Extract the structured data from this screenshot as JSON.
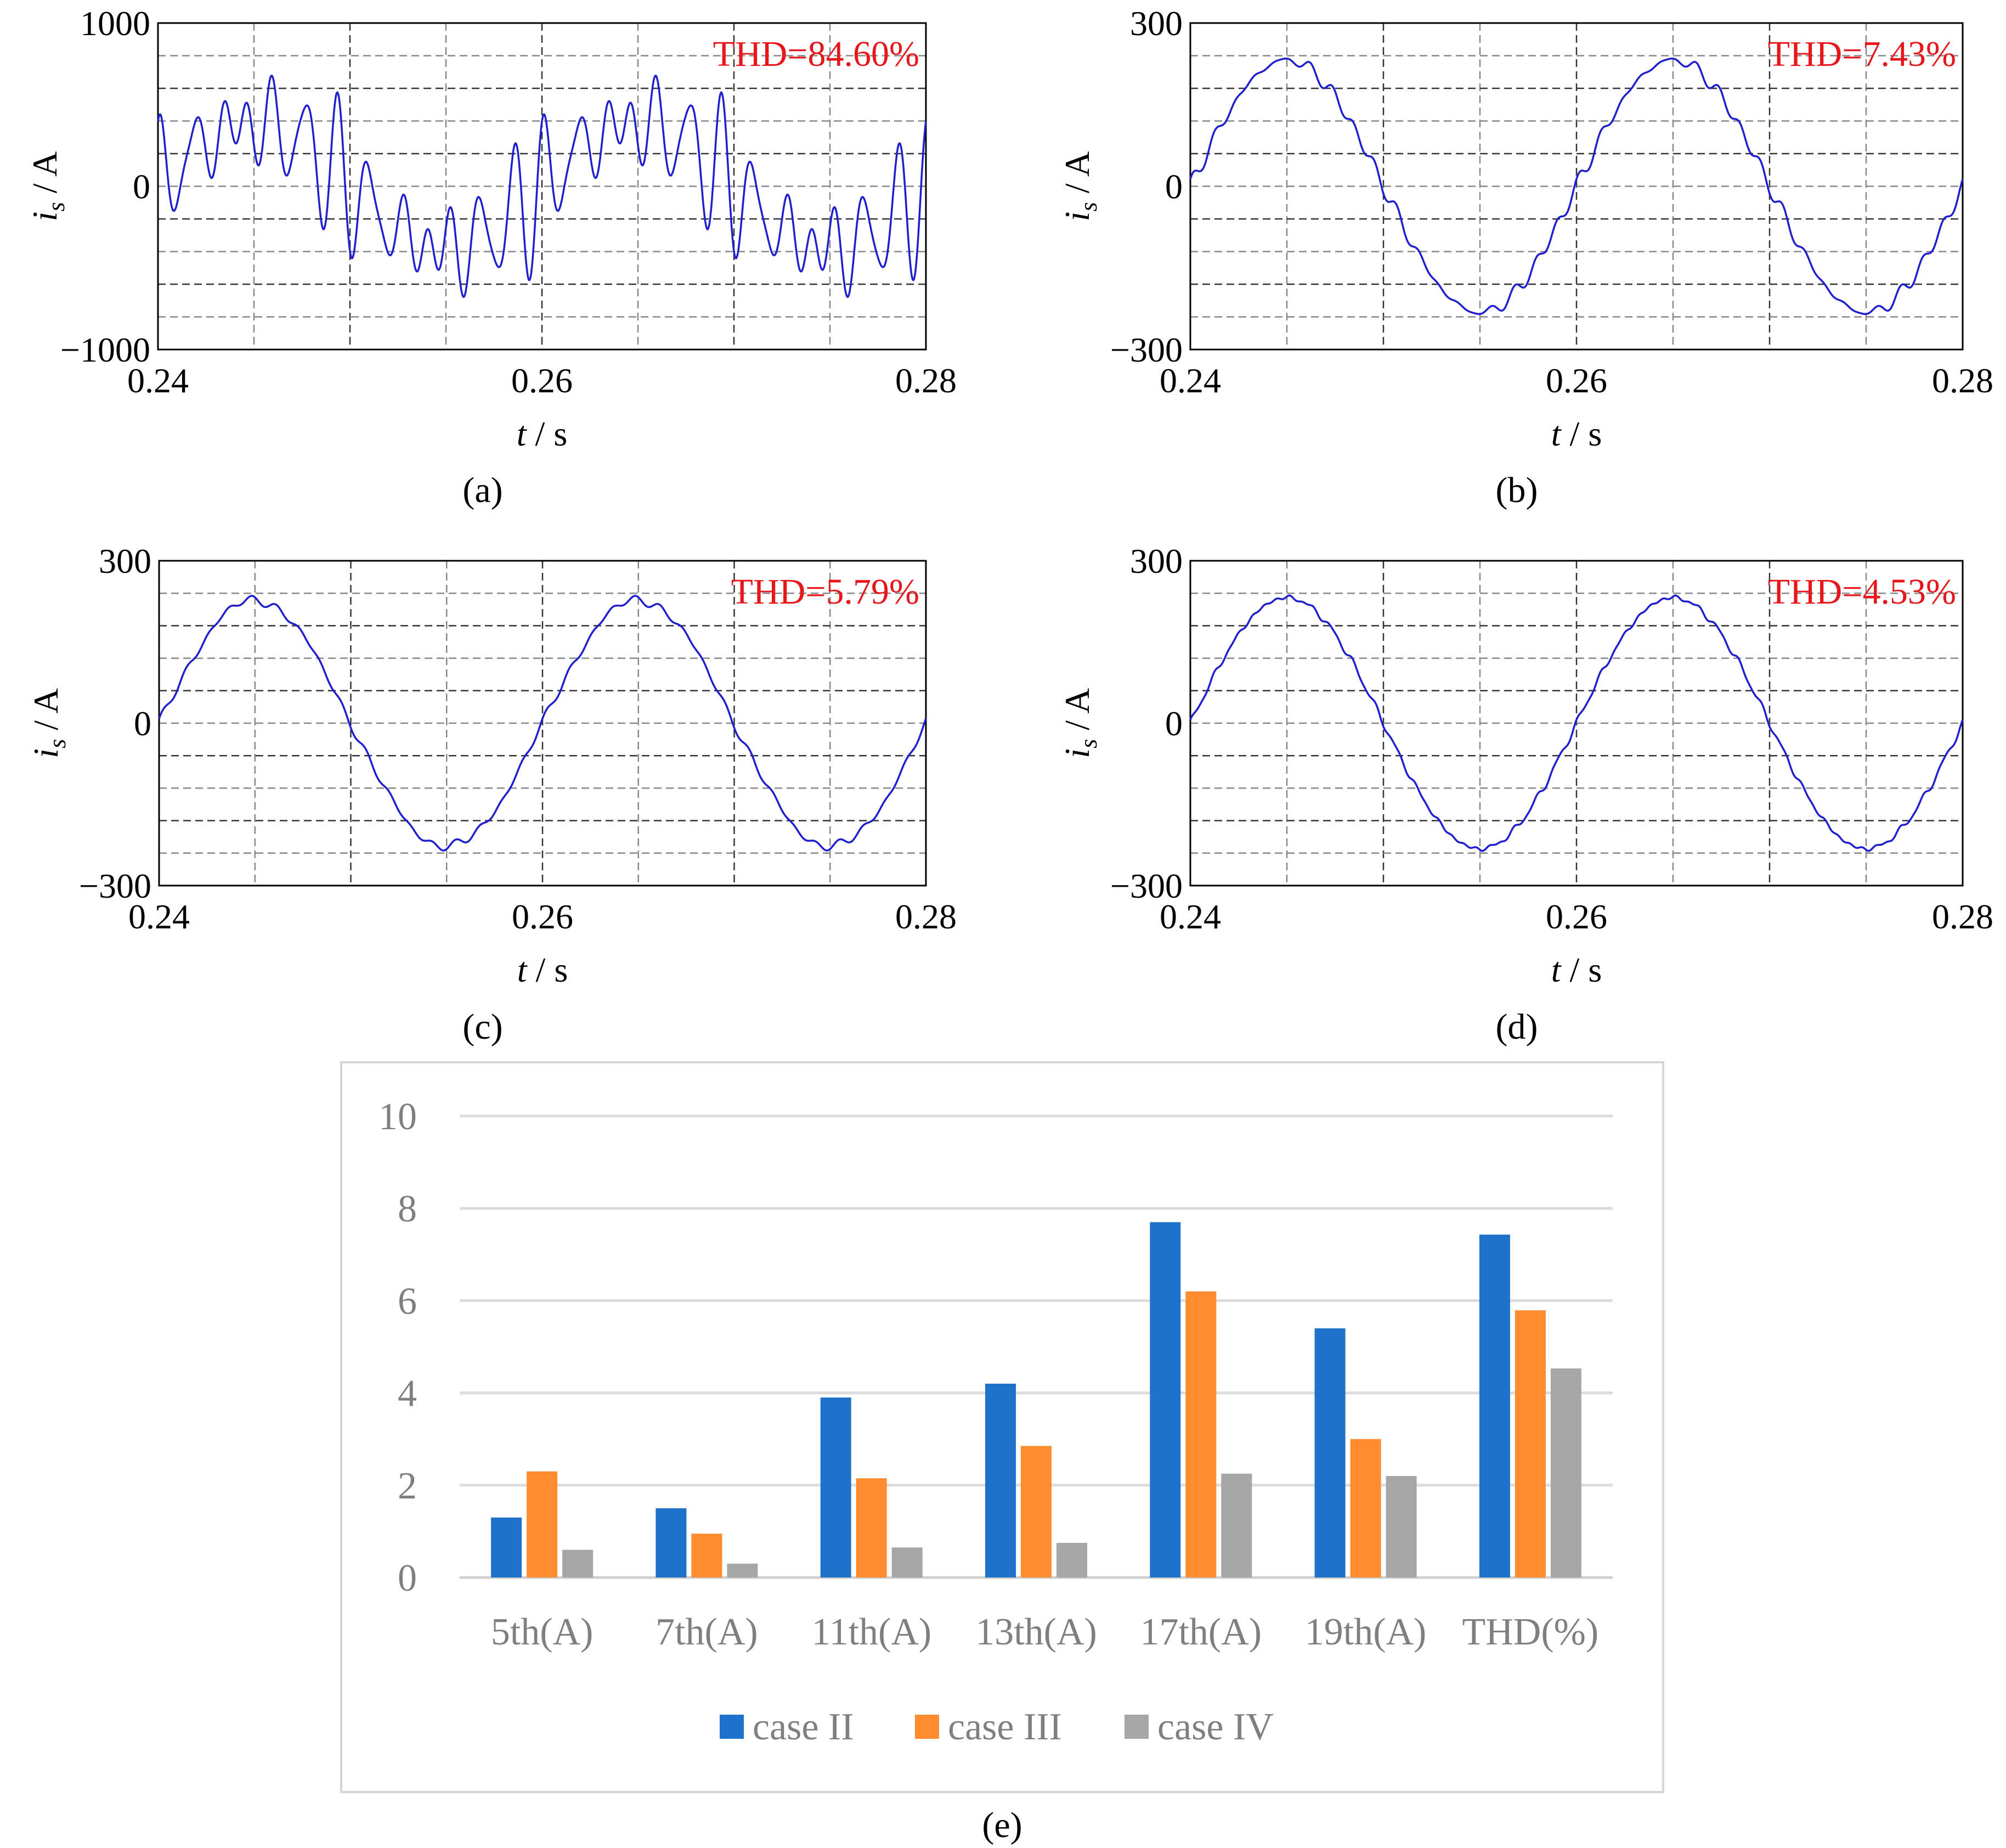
{
  "chart_data": [
    {
      "type": "line",
      "panel": "a",
      "caption": "(a)",
      "ylabel": "i_s / A",
      "ylabel_var": "i",
      "ylabel_sub": "s",
      "ylabel_unit": " / A",
      "xlabel": "t / s",
      "xlabel_var": "t",
      "xlabel_unit": " / s",
      "xlim": [
        0.24,
        0.28
      ],
      "ylim": [
        -1000,
        1000
      ],
      "x_ticks": [
        "0.24",
        "0.26",
        "0.28"
      ],
      "y_ticks": [
        "1000",
        "0",
        "−1000"
      ],
      "annotation": "THD=84.60%",
      "waveform": {
        "amplitude": 380,
        "fundamental_hz": 50,
        "ripple": [
          {
            "harmonic": 11,
            "amp": 200
          },
          {
            "harmonic": 13,
            "amp": 180
          },
          {
            "harmonic": 17,
            "amp": 120
          }
        ]
      },
      "series": [
        {
          "name": "i_s",
          "color": "#1f1fd0"
        }
      ]
    },
    {
      "type": "line",
      "panel": "b",
      "caption": "(b)",
      "ylabel": "i_s / A",
      "ylabel_var": "i",
      "ylabel_sub": "s",
      "ylabel_unit": " / A",
      "xlabel": "t / s",
      "xlabel_var": "t",
      "xlabel_unit": " / s",
      "xlim": [
        0.24,
        0.28
      ],
      "ylim": [
        -300,
        300
      ],
      "x_ticks": [
        "0.24",
        "0.26",
        "0.28"
      ],
      "y_ticks": [
        "300",
        "0",
        "−300"
      ],
      "annotation": "THD=7.43%",
      "waveform": {
        "amplitude": 232,
        "fundamental_hz": 50,
        "ripple": [
          {
            "harmonic": 17,
            "amp": 7
          },
          {
            "harmonic": 19,
            "amp": 6
          },
          {
            "harmonic": 13,
            "amp": 4
          }
        ]
      },
      "series": [
        {
          "name": "i_s",
          "color": "#1f1fd0"
        }
      ]
    },
    {
      "type": "line",
      "panel": "c",
      "caption": "(c)",
      "ylabel": "i_s / A",
      "ylabel_var": "i",
      "ylabel_sub": "s",
      "ylabel_unit": " / A",
      "xlabel": "t / s",
      "xlabel_var": "t",
      "xlabel_unit": " / s",
      "xlim": [
        0.24,
        0.28
      ],
      "ylim": [
        -300,
        300
      ],
      "x_ticks": [
        "0.24",
        "0.26",
        "0.28"
      ],
      "y_ticks": [
        "300",
        "0",
        "−300"
      ],
      "annotation": "THD=5.79%",
      "waveform": {
        "amplitude": 228,
        "fundamental_hz": 50,
        "ripple": [
          {
            "harmonic": 17,
            "amp": 5
          },
          {
            "harmonic": 13,
            "amp": 3
          },
          {
            "harmonic": 5,
            "amp": 3
          }
        ]
      },
      "series": [
        {
          "name": "i_s",
          "color": "#1f1fd0"
        }
      ]
    },
    {
      "type": "line",
      "panel": "d",
      "caption": "(d)",
      "ylabel": "i_s / A",
      "ylabel_var": "i",
      "ylabel_sub": "s",
      "ylabel_unit": " / A",
      "xlabel": "t / s",
      "xlabel_var": "t",
      "xlabel_unit": " / s",
      "xlim": [
        0.24,
        0.28
      ],
      "ylim": [
        -300,
        300
      ],
      "x_ticks": [
        "0.24",
        "0.26",
        "0.28"
      ],
      "y_ticks": [
        "300",
        "0",
        "−300"
      ],
      "annotation": "THD=4.53%",
      "waveform": {
        "amplitude": 232,
        "fundamental_hz": 50,
        "ripple": [
          {
            "harmonic": 17,
            "amp": 3
          },
          {
            "harmonic": 19,
            "amp": 3
          },
          {
            "harmonic": 31,
            "amp": 2
          }
        ]
      },
      "series": [
        {
          "name": "i_s",
          "color": "#1f1fd0"
        }
      ]
    },
    {
      "type": "bar",
      "panel": "e",
      "caption": "(e)",
      "categories": [
        "5th(A)",
        "7th(A)",
        "11th(A)",
        "13th(A)",
        "17th(A)",
        "19th(A)",
        "THD(%)"
      ],
      "series": [
        {
          "name": "case II",
          "color": "#1f72c9",
          "values": [
            1.3,
            1.5,
            3.9,
            4.2,
            7.7,
            5.4,
            7.43
          ]
        },
        {
          "name": "case III",
          "color": "#ff8c2e",
          "values": [
            2.3,
            0.95,
            2.15,
            2.85,
            6.2,
            3.0,
            5.79
          ]
        },
        {
          "name": "case IV",
          "color": "#a6a6a6",
          "values": [
            0.6,
            0.3,
            0.65,
            0.75,
            2.25,
            2.2,
            4.53
          ]
        }
      ],
      "ylim": [
        0,
        10
      ],
      "y_ticks": [
        "0",
        "2",
        "4",
        "6",
        "8",
        "10"
      ],
      "legend": "bottom",
      "grid": true
    }
  ]
}
